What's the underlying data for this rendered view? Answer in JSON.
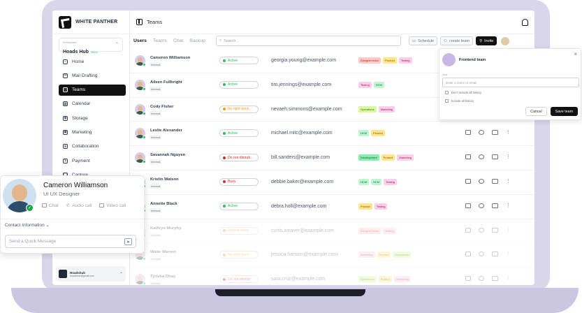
{
  "brand": {
    "name": "WHITE PANTHER"
  },
  "workspace": {
    "label": "Workspace",
    "name": "Hoads Hub",
    "badge": "Select"
  },
  "nav": [
    {
      "label": "Home",
      "icon": "home-icon"
    },
    {
      "label": "Mail Drafting",
      "icon": "mail-icon"
    },
    {
      "label": "Teams",
      "icon": "users-icon",
      "active": true
    },
    {
      "label": "Calendar",
      "icon": "calendar-icon"
    },
    {
      "label": "Storage",
      "icon": "storage-icon"
    },
    {
      "label": "Marketing",
      "icon": "marketing-icon"
    },
    {
      "label": "Collaboration",
      "icon": "handshake-icon"
    },
    {
      "label": "Payment",
      "icon": "payment-icon"
    },
    {
      "label": "Capture",
      "icon": "capture-icon"
    }
  ],
  "account": {
    "name": "Hoadshub",
    "email": "hoadshub@gmail.com"
  },
  "header": {
    "title": "Teams"
  },
  "tabs": [
    "Users",
    "Teams",
    "Chat",
    "Backup"
  ],
  "search": {
    "placeholder": "Search..."
  },
  "toolbar": {
    "schedule": "Schedule",
    "create_team": "create team",
    "invite": "Invite"
  },
  "rows": [
    {
      "name": "Cameron Williamson",
      "role": "Internal",
      "status": "Active",
      "status_color": "#22c55e",
      "email": "georgia.young@example.com",
      "tags": [
        {
          "t": "Designer team",
          "c": "#fecaca",
          "f": "#b91c1c"
        },
        {
          "t": "Product",
          "c": "#fde68a",
          "f": "#92400e"
        },
        {
          "t": "Testing",
          "c": "#fbcfe8",
          "f": "#9d174d"
        }
      ]
    },
    {
      "name": "Aileen Fullbright",
      "role": "Internal",
      "status": "Active",
      "status_color": "#22c55e",
      "email": "tim.jennings@example.com",
      "tags": [
        {
          "t": "Testing",
          "c": "#fbcfe8",
          "f": "#9d174d"
        },
        {
          "t": "HCM",
          "c": "#bbf7d0",
          "f": "#166534"
        }
      ]
    },
    {
      "name": "Cody Fisher",
      "role": "Internal",
      "status": "Be right back",
      "status_color": "#f59e0b",
      "email": "nevaeh.simmons@example.com",
      "tags": [
        {
          "t": "Operations",
          "c": "#d9f99d",
          "f": "#3f6212"
        },
        {
          "t": "Marketing",
          "c": "#fbcfe8",
          "f": "#9d174d"
        }
      ]
    },
    {
      "name": "Leslie Alexander",
      "role": "Internal",
      "status": "Active",
      "status_color": "#22c55e",
      "email": "michael.mitc@example.com",
      "tags": [
        {
          "t": "HCM",
          "c": "#bbf7d0",
          "f": "#166534"
        },
        {
          "t": "Product",
          "c": "#fde68a",
          "f": "#92400e"
        }
      ]
    },
    {
      "name": "Savannah Nguyen",
      "role": "Internal",
      "status": "Do not distrub",
      "status_color": "#dc2626",
      "email": "bill.sanders@example.com",
      "tags": [
        {
          "t": "Development",
          "c": "#86efac",
          "f": "#14532d"
        },
        {
          "t": "Product",
          "c": "#fde68a",
          "f": "#92400e"
        },
        {
          "t": "Marketing",
          "c": "#fbcfe8",
          "f": "#9d174d"
        }
      ]
    },
    {
      "name": "Kristin Watson",
      "role": "Internal",
      "status": "Busy",
      "status_color": "#dc2626",
      "email": "debbie.baker@example.com",
      "tags": [
        {
          "t": "HCM",
          "c": "#bbf7d0",
          "f": "#166534"
        },
        {
          "t": "HCM",
          "c": "#bbf7d0",
          "f": "#166534"
        },
        {
          "t": "Testing",
          "c": "#fbcfe8",
          "f": "#9d174d"
        }
      ]
    },
    {
      "name": "Annette Black",
      "role": "Internal",
      "status": "Active",
      "status_color": "#22c55e",
      "email": "debra.holl@example.com",
      "tags": [
        {
          "t": "Product",
          "c": "#fde68a",
          "f": "#92400e"
        },
        {
          "t": "Testing",
          "c": "#fbcfe8",
          "f": "#9d174d"
        }
      ]
    },
    {
      "name": "Kathryn Murphy",
      "role": "Internal",
      "status": "Appear away",
      "status_color": "#f59e0b",
      "email": "curtis.weaver@example.com",
      "tags": [
        {
          "t": "Designer team",
          "c": "#fecaca",
          "f": "#b91c1c"
        },
        {
          "t": "Testing",
          "c": "#fbcfe8",
          "f": "#9d174d"
        }
      ]
    },
    {
      "name": "Wade Warren",
      "role": "Internal",
      "status": "Be right back",
      "status_color": "#f59e0b",
      "email": "jessica.hanson@example.com",
      "tags": [
        {
          "t": "Marketing",
          "c": "#fbcfe8",
          "f": "#9d174d"
        },
        {
          "t": "Product",
          "c": "#fde68a",
          "f": "#92400e"
        },
        {
          "t": "Operations",
          "c": "#d9f99d",
          "f": "#3f6212"
        }
      ]
    },
    {
      "name": "Tyrisha Obay",
      "role": "Internal",
      "status": "Do not distrub",
      "status_color": "#dc2626",
      "email": "sara.cruz@example.com",
      "tags": [
        {
          "t": "Operations",
          "c": "#d9f99d",
          "f": "#3f6212"
        },
        {
          "t": "Product",
          "c": "#fde68a",
          "f": "#92400e"
        },
        {
          "t": "Marketing",
          "c": "#fbcfe8",
          "f": "#9d174d"
        }
      ]
    }
  ],
  "popup": {
    "title": "Frontend team",
    "add_label": "Add",
    "input_placeholder": "Enter a name or email",
    "check1": "Don't include all history",
    "check2": "Include all history",
    "cancel": "Cancel",
    "save": "Save team"
  },
  "profile_card": {
    "name": "Cameron Williamson",
    "role": "UI UX Designer",
    "actions": [
      "Chat",
      "Audio call",
      "Video call"
    ],
    "contact_info": "Contact Information",
    "message_placeholder": "Send a Quick Message"
  }
}
